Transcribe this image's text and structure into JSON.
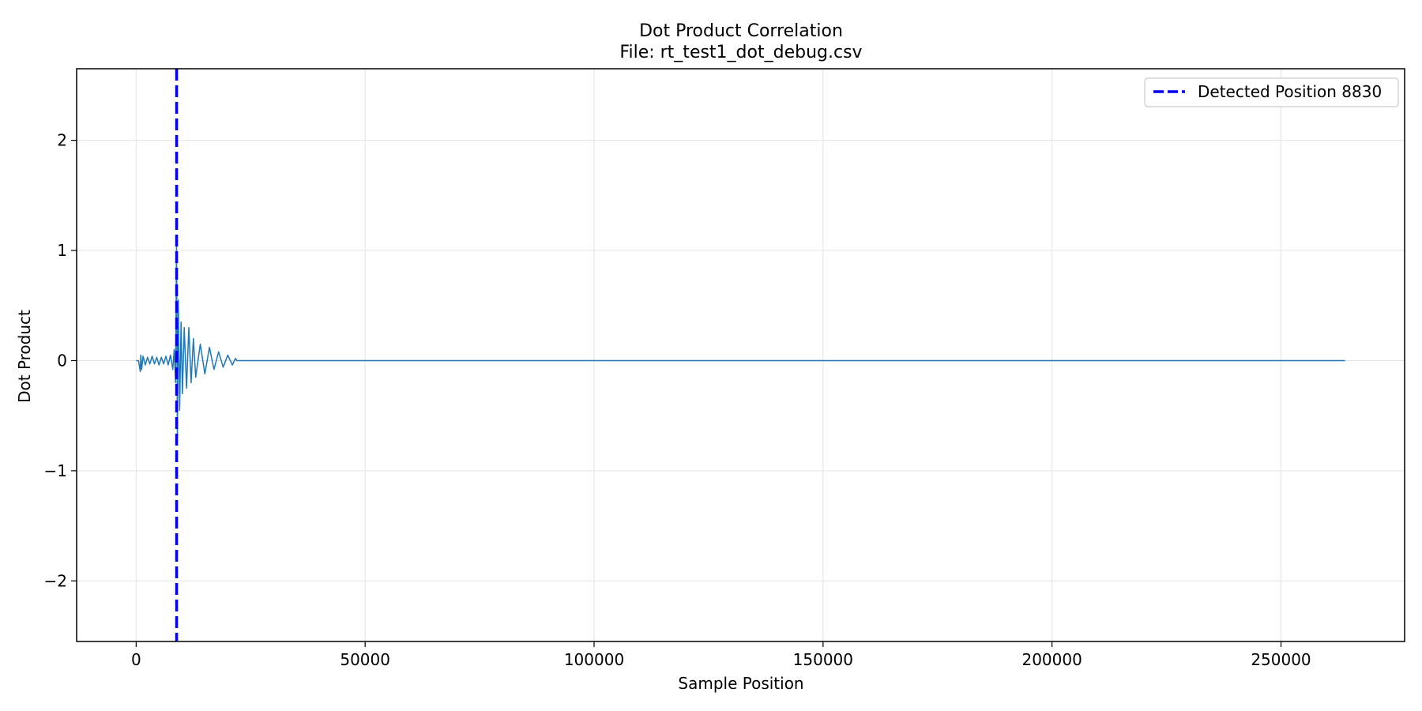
{
  "chart_data": {
    "type": "line",
    "title": "Dot Product Correlation",
    "subtitle": "File: rt_test1_dot_debug.csv",
    "xlabel": "Sample Position",
    "ylabel": "Dot Product",
    "xlim": [
      -13000,
      277000
    ],
    "ylim": [
      -2.55,
      2.65
    ],
    "xticks": [
      0,
      50000,
      100000,
      150000,
      200000,
      250000
    ],
    "yticks": [
      -2,
      -1,
      0,
      1,
      2
    ],
    "xtick_labels": [
      "0",
      "50000",
      "100000",
      "150000",
      "200000",
      "250000"
    ],
    "ytick_labels": [
      "−2",
      "−1",
      "0",
      "1",
      "2"
    ],
    "grid": true,
    "legend_position": "top-right",
    "series": [
      {
        "color": "#1f77b4",
        "x": [
          0,
          500,
          900,
          1000,
          1200,
          1500,
          2000,
          2500,
          3000,
          3500,
          4000,
          4500,
          5000,
          5500,
          6000,
          6500,
          7000,
          7500,
          8000,
          8300,
          8600,
          8830,
          9000,
          9200,
          9500,
          9800,
          10100,
          10500,
          11000,
          11500,
          12000,
          12500,
          13000,
          14000,
          15000,
          16000,
          17000,
          18000,
          19000,
          20000,
          21000,
          21700,
          22000,
          264000
        ],
        "y": [
          0,
          0,
          -0.1,
          0.05,
          -0.08,
          0.04,
          -0.04,
          0.03,
          -0.03,
          0.04,
          -0.03,
          0.03,
          -0.04,
          0.03,
          -0.03,
          0.04,
          -0.04,
          0.05,
          -0.08,
          0.1,
          -0.2,
          1.1,
          -0.7,
          0.55,
          -0.45,
          0.35,
          -0.3,
          0.3,
          -0.25,
          0.3,
          -0.2,
          0.2,
          -0.15,
          0.15,
          -0.12,
          0.12,
          -0.08,
          0.08,
          -0.06,
          0.05,
          -0.04,
          0.02,
          0,
          0
        ]
      }
    ],
    "vline": {
      "x": 8830,
      "label": "Detected Position 8830",
      "color": "#0000ee",
      "style": "dashed"
    }
  }
}
